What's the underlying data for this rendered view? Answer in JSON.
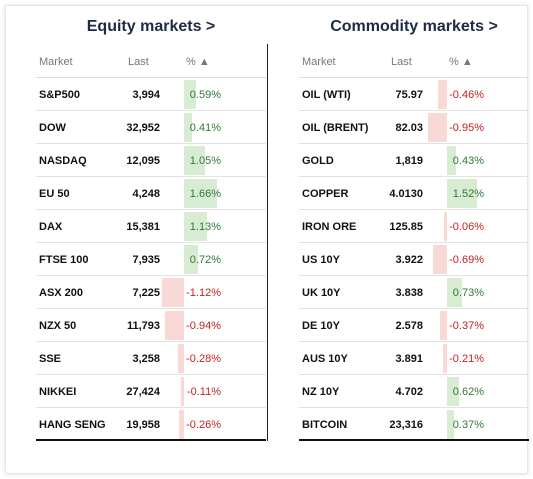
{
  "colors": {
    "positive_bar": "#d8ecd4",
    "negative_bar": "#f8d9d5",
    "positive_text": "#2f7a36",
    "negative_text": "#c5221f",
    "title": "#1d2b44"
  },
  "equity": {
    "title": "Equity markets >",
    "headers": {
      "market": "Market",
      "last": "Last",
      "pct": "% ▲"
    },
    "rows": [
      {
        "market": "S&P500",
        "last": "3,994",
        "pct": "0.59%",
        "value": 0.59
      },
      {
        "market": "DOW",
        "last": "32,952",
        "pct": "0.41%",
        "value": 0.41
      },
      {
        "market": "NASDAQ",
        "last": "12,095",
        "pct": "1.05%",
        "value": 1.05
      },
      {
        "market": "EU 50",
        "last": "4,248",
        "pct": "1.66%",
        "value": 1.66
      },
      {
        "market": "DAX",
        "last": "15,381",
        "pct": "1.13%",
        "value": 1.13
      },
      {
        "market": "FTSE 100",
        "last": "7,935",
        "pct": "0.72%",
        "value": 0.72
      },
      {
        "market": "ASX 200",
        "last": "7,225",
        "pct": "-1.12%",
        "value": -1.12
      },
      {
        "market": "NZX 50",
        "last": "11,793",
        "pct": "-0.94%",
        "value": -0.94
      },
      {
        "market": "SSE",
        "last": "3,258",
        "pct": "-0.28%",
        "value": -0.28
      },
      {
        "market": "NIKKEI",
        "last": "27,424",
        "pct": "-0.11%",
        "value": -0.11
      },
      {
        "market": "HANG SENG",
        "last": "19,958",
        "pct": "-0.26%",
        "value": -0.26
      }
    ]
  },
  "commodity": {
    "title": "Commodity markets >",
    "headers": {
      "market": "Market",
      "last": "Last",
      "pct": "% ▲"
    },
    "rows": [
      {
        "market": "OIL (WTI)",
        "last": "75.97",
        "pct": "-0.46%",
        "value": -0.46
      },
      {
        "market": "OIL (BRENT)",
        "last": "82.03",
        "pct": "-0.95%",
        "value": -0.95
      },
      {
        "market": "GOLD",
        "last": "1,819",
        "pct": "0.43%",
        "value": 0.43
      },
      {
        "market": "COPPER",
        "last": "4.0130",
        "pct": "1.52%",
        "value": 1.52
      },
      {
        "market": "IRON ORE",
        "last": "125.85",
        "pct": "-0.06%",
        "value": -0.06
      },
      {
        "market": "US 10Y",
        "last": "3.922",
        "pct": "-0.69%",
        "value": -0.69
      },
      {
        "market": "UK 10Y",
        "last": "3.838",
        "pct": "0.73%",
        "value": 0.73
      },
      {
        "market": "DE 10Y",
        "last": "2.578",
        "pct": "-0.37%",
        "value": -0.37
      },
      {
        "market": "AUS 10Y",
        "last": "3.891",
        "pct": "-0.21%",
        "value": -0.21
      },
      {
        "market": "NZ 10Y",
        "last": "4.702",
        "pct": "0.62%",
        "value": 0.62
      },
      {
        "market": "BITCOIN",
        "last": "23,316",
        "pct": "0.37%",
        "value": 0.37
      }
    ]
  }
}
